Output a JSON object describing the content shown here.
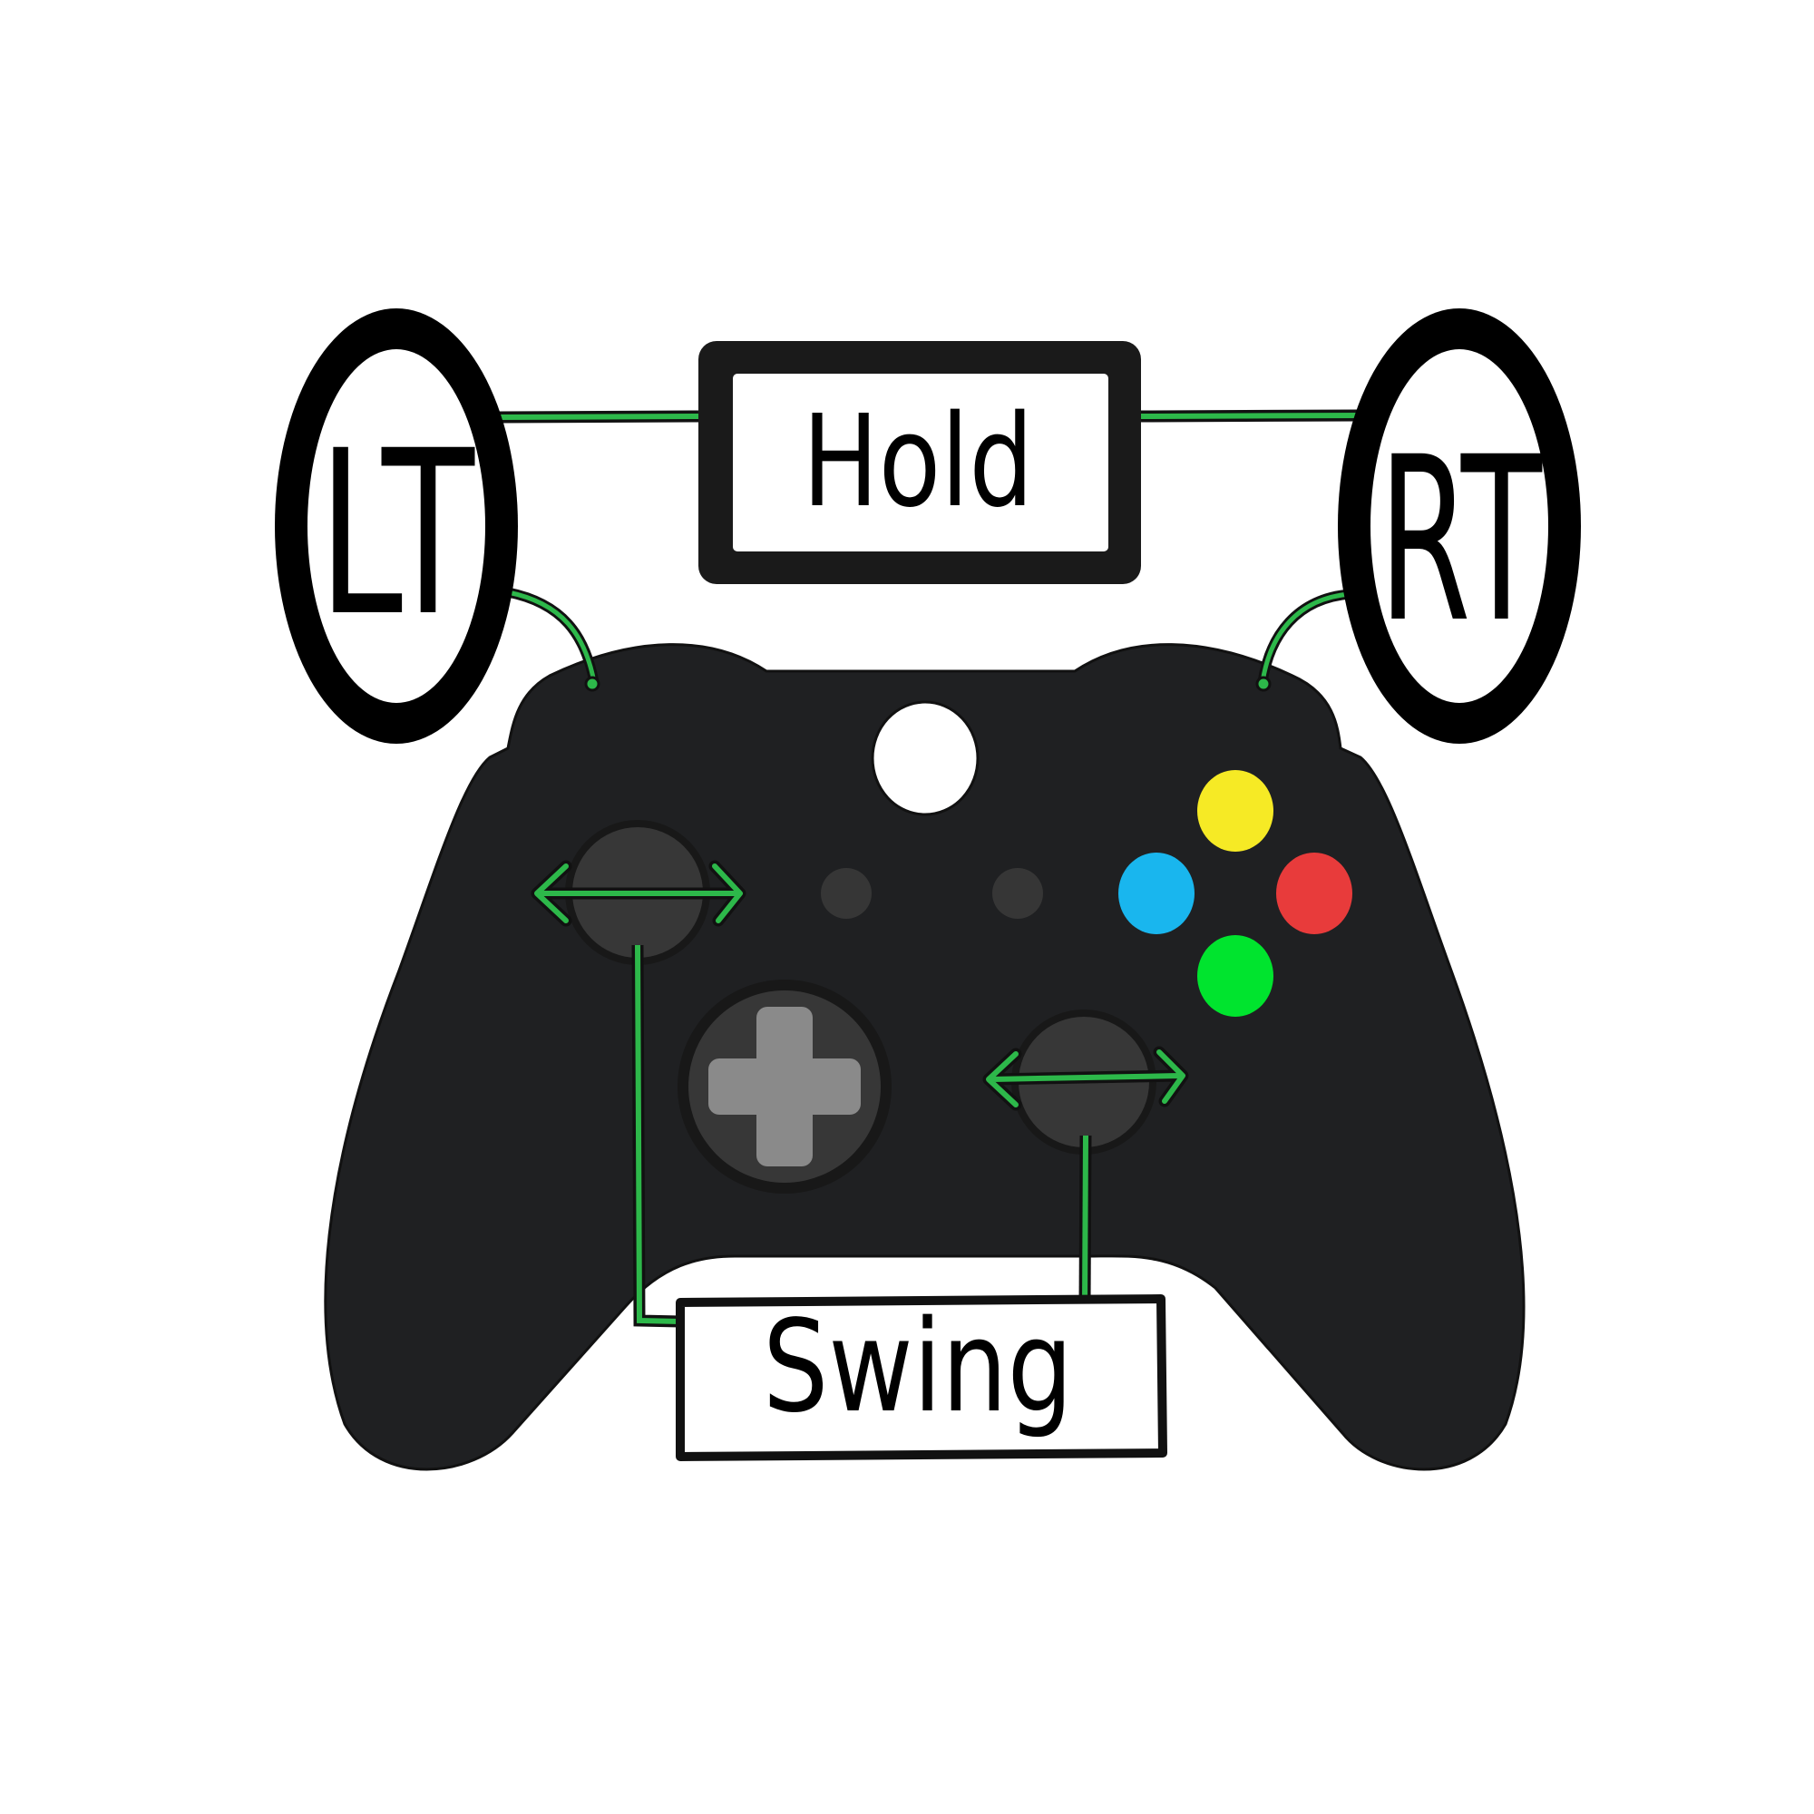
{
  "labels": {
    "left_trigger": "LT",
    "right_trigger": "RT",
    "hold": "Hold",
    "swing": "Swing"
  },
  "colors": {
    "controller_body": "#1f2022",
    "connector_line": "#2db84a",
    "button_top": "#f6ea25",
    "button_left": "#19b6ee",
    "button_right": "#e83b3b",
    "button_bottom": "#00e42e",
    "guide_button": "#ffffff",
    "stick": "#373737",
    "dpad": "#8a8a8a"
  },
  "icons": {
    "controller": "gamepad-icon",
    "left_stick_arrows": "left-right-arrow-icon",
    "right_stick_arrows": "left-right-arrow-icon",
    "dpad": "dpad-icon"
  }
}
